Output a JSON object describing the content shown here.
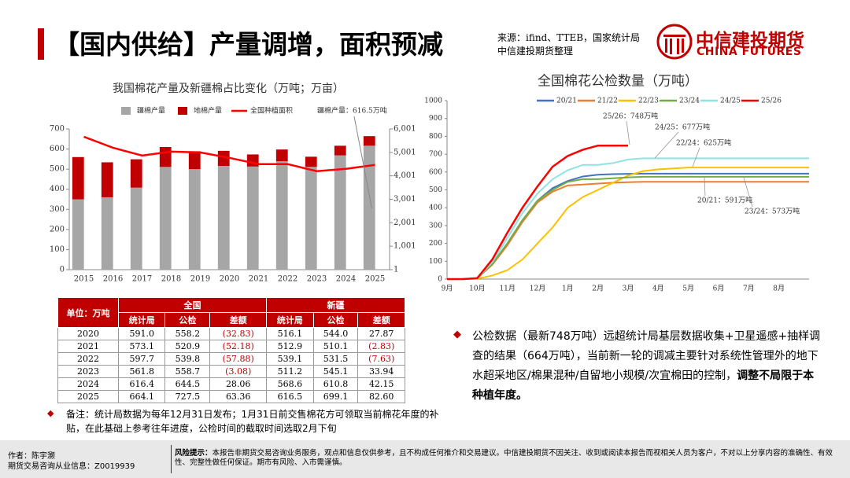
{
  "header": {
    "title": "【国内供给】产量调增，面积预减",
    "source": [
      "来源：ifind、TTEB，国家统计局",
      "中信建投期货整理"
    ],
    "logo": {
      "name": "中信建投期货",
      "en": "CHINA FUTURES"
    }
  },
  "chart_data": [
    {
      "type": "bar-line",
      "title": "我国棉花产量及新疆棉占比变化（万吨；万亩）",
      "stacked": true,
      "categories": [
        "2015",
        "2016",
        "2017",
        "2018",
        "2019",
        "2020",
        "2021",
        "2022",
        "2023",
        "2024",
        "2025"
      ],
      "series": [
        {
          "name": "疆棉产量",
          "color": "#a6a6a6",
          "values": [
            350,
            360,
            408,
            511,
            500,
            516.1,
            512.9,
            539.1,
            511.2,
            568.6,
            616.5
          ]
        },
        {
          "name": "地棉产量",
          "color": "#c00000",
          "values": [
            210,
            174,
            141,
            99,
            89,
            74.9,
            60.2,
            58.6,
            50.6,
            47.8,
            47.6
          ]
        },
        {
          "name": "全国种植面积",
          "color": "#ff0000",
          "type": "line",
          "axis": "y2",
          "values": [
            5667,
            5200,
            4867,
            5033,
            5000,
            4767,
            4500,
            4500,
            4200,
            4300,
            4467
          ]
        }
      ],
      "ylim": [
        0,
        700
      ],
      "yticks": [
        0,
        100,
        200,
        300,
        400,
        500,
        600,
        700
      ],
      "y2lim": [
        1,
        6001
      ],
      "y2ticks": [
        1,
        {
          "value": 1001,
          "label": "1,001"
        },
        {
          "value": 2001,
          "label": "2,001"
        },
        {
          "value": 3001,
          "label": "3,001"
        },
        {
          "value": 4001,
          "label": "4,001"
        },
        {
          "value": 5001,
          "label": "5,001"
        },
        {
          "value": 6001,
          "label": "6,001"
        }
      ],
      "annotations": [
        {
          "text": "疆棉产量：616.5万吨"
        }
      ]
    },
    {
      "type": "line",
      "title": "全国棉花公检数量（万吨）",
      "categories": [
        "9月",
        null,
        "10月",
        null,
        "11月",
        null,
        "12月",
        null,
        "1月",
        null,
        "2月",
        null,
        "3月",
        null,
        "4月",
        null,
        "5月",
        null,
        "6月",
        null,
        "7月",
        null,
        "8月",
        null,
        null
      ],
      "series": [
        {
          "name": "20/21",
          "color": "#4472c4",
          "values": [
            0,
            0,
            5,
            85,
            200,
            330,
            440,
            510,
            550,
            575,
            585,
            588,
            590,
            591,
            591,
            591,
            591,
            591,
            591,
            591,
            591,
            591,
            591,
            591,
            591
          ]
        },
        {
          "name": "21/22",
          "color": "#ed7d31",
          "values": [
            0,
            0,
            5,
            80,
            190,
            320,
            430,
            490,
            525,
            530,
            535,
            540,
            543,
            545,
            545,
            545,
            545,
            545,
            545,
            545,
            545,
            545,
            545,
            545,
            545
          ]
        },
        {
          "name": "22/23",
          "color": "#ffc000",
          "values": [
            0,
            0,
            2,
            20,
            50,
            110,
            200,
            290,
            400,
            460,
            500,
            540,
            580,
            605,
            615,
            620,
            625,
            625,
            625,
            625,
            625,
            625,
            625,
            625,
            625
          ]
        },
        {
          "name": "23/24",
          "color": "#70ad47",
          "values": [
            0,
            0,
            5,
            85,
            200,
            330,
            440,
            500,
            545,
            560,
            560,
            565,
            570,
            573,
            573,
            573,
            573,
            573,
            573,
            573,
            573,
            573,
            573,
            573,
            573
          ]
        },
        {
          "name": "24/25",
          "color": "#8ee4e0",
          "values": [
            0,
            0,
            5,
            95,
            230,
            370,
            480,
            560,
            610,
            640,
            640,
            650,
            670,
            677,
            677,
            677,
            677,
            677,
            677,
            677,
            677,
            677,
            677,
            677,
            677
          ]
        },
        {
          "name": "25/26",
          "color": "#ff0000",
          "values": [
            0,
            0,
            5,
            110,
            260,
            400,
            520,
            630,
            690,
            725,
            748,
            748,
            748,
            null,
            null,
            null,
            null,
            null,
            null,
            null,
            null,
            null,
            null,
            null,
            null
          ]
        }
      ],
      "ylim": [
        0,
        1000
      ],
      "yticks": [
        0,
        100,
        200,
        300,
        400,
        500,
        600,
        700,
        800,
        900,
        1000
      ],
      "annotations": [
        {
          "text": "25/26：748万吨"
        },
        {
          "text": "24/25：677万吨"
        },
        {
          "text": "22/24：625万吨"
        },
        {
          "text": "20/21：591万吨"
        },
        {
          "text": "23/24：573万吨"
        }
      ]
    }
  ],
  "table": {
    "corner": "单位：万吨",
    "groups": [
      "全国",
      "新疆"
    ],
    "columns": [
      "统计局",
      "公检",
      "差额",
      "统计局",
      "公检",
      "差额"
    ],
    "rows": [
      [
        "2020",
        "591.0",
        "558.2",
        "(32.83)",
        "516.1",
        "544.0",
        "27.87"
      ],
      [
        "2021",
        "573.1",
        "520.9",
        "(52.18)",
        "512.9",
        "510.1",
        "(2.83)"
      ],
      [
        "2022",
        "597.7",
        "539.8",
        "(57.88)",
        "539.1",
        "531.5",
        "(7.63)"
      ],
      [
        "2023",
        "561.8",
        "558.7",
        "(3.08)",
        "511.2",
        "545.1",
        "33.94"
      ],
      [
        "2024",
        "616.4",
        "644.5",
        "28.06",
        "568.6",
        "610.8",
        "42.15"
      ],
      [
        "2025",
        "664.1",
        "727.5",
        "63.36",
        "616.5",
        "699.1",
        "82.60"
      ]
    ]
  },
  "notes": {
    "main": "公检数据（最新748万吨）远超统计局基层数据收集+卫星遥感+抽样调查的结果（664万吨），当前新一轮的调减主要针对系统性管理外的地下水超采地区/棉果混种/自留地小规模/次宜棉田的控制，",
    "bold": "调整不局限于本种植年度。",
    "remark": "备注：统计局数据为每年12月31日发布；1月31日前交售棉花方可领取当前棉花年度的补贴，在此基础上参考往年进度，公检时间的截取时间选取2月下旬"
  },
  "footer": {
    "author": "作者：陈宇灏",
    "license": "期货交易咨询从业信息：Z0019939",
    "risk_label": "风险提示：",
    "risk": "本报告非期货交易咨询业务服务，观点和信息仅供参考，且不构成任何推介和交易建议。中信建投期货不因关注、收到或阅读本报告而视相关人员为客户，不对以上分享内容的准确性、有效性、完整性做任何保证。期市有风险、入市需谨慎。"
  }
}
